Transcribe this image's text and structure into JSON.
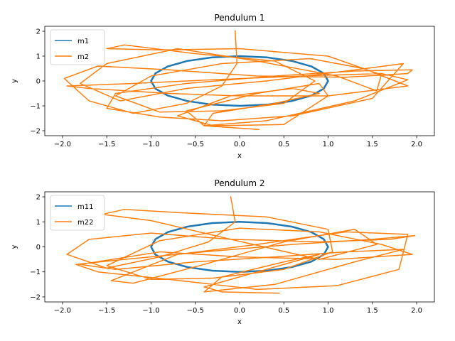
{
  "chart_data": [
    {
      "type": "line",
      "title": "Pendulum 1",
      "xlabel": "x",
      "ylabel": "y",
      "xlim": [
        -2.2,
        2.2
      ],
      "ylim": [
        -2.2,
        2.2
      ],
      "xticks": [
        -2.0,
        -1.5,
        -1.0,
        -0.5,
        0.0,
        0.5,
        1.0,
        1.5,
        2.0
      ],
      "yticks": [
        -2,
        -1,
        0,
        1,
        2
      ],
      "xtick_labels": [
        "−2.0",
        "−1.5",
        "−1.0",
        "−0.5",
        "0.0",
        "0.5",
        "1.0",
        "1.5",
        "2.0"
      ],
      "ytick_labels": [
        "−2",
        "−1",
        "0",
        "1",
        "2"
      ],
      "grid": false,
      "legend_position": "top-left",
      "series": [
        {
          "name": "m1",
          "color": "#1f77b4",
          "shape": "closed ellipse trace (length-1 rod, y scaled)",
          "x": [
            1.0,
            0.951,
            0.809,
            0.588,
            0.309,
            0.0,
            -0.309,
            -0.588,
            -0.809,
            -0.951,
            -1.0,
            -0.951,
            -0.809,
            -0.588,
            -0.309,
            0.0,
            0.309,
            0.588,
            0.809,
            0.951,
            1.0
          ],
          "y": [
            0.0,
            0.31,
            0.59,
            0.81,
            0.95,
            1.0,
            0.95,
            0.81,
            0.59,
            0.31,
            0.0,
            -0.31,
            -0.59,
            -0.81,
            -0.95,
            -1.0,
            -0.95,
            -0.81,
            -0.59,
            -0.31,
            0.0
          ]
        },
        {
          "name": "m2",
          "color": "#ff7f0e",
          "x": [
            -0.05,
            -0.03,
            -0.2,
            -0.6,
            -1.2,
            -1.7,
            -1.98,
            -1.6,
            -0.8,
            0.2,
            1.2,
            1.9,
            1.95,
            1.3,
            0.4,
            -0.6,
            -1.4,
            -1.5,
            -0.9,
            -0.2,
            0.6,
            1.5,
            1.85,
            1.2,
            0.3,
            -0.6,
            -1.35,
            -1.8,
            -1.5,
            -0.7,
            0.2,
            1.1,
            1.55,
            1.6,
            1.0,
            0.0,
            -0.9,
            -1.5,
            -1.3,
            -0.5,
            0.4,
            0.85,
            0.5,
            -0.2,
            -0.9,
            -1.4,
            -1.0,
            -0.2,
            0.8,
            1.4,
            1.9,
            1.0,
            0.0,
            -0.8,
            -1.7,
            -1.95,
            -1.2,
            -0.3,
            0.7,
            1.6,
            1.9,
            1.3,
            0.3,
            -0.4,
            -0.6,
            0.2,
            0.9,
            1.0,
            0.5,
            -0.3,
            -0.7,
            -0.1,
            0.6,
            0.9,
            0.4,
            -0.3,
            -0.4,
            0.22
          ],
          "y": [
            2.02,
            0.7,
            -0.2,
            -0.9,
            -1.3,
            -0.8,
            0.1,
            0.6,
            0.45,
            0.2,
            0.15,
            0.3,
            0.45,
            0.4,
            0.2,
            -0.1,
            -0.5,
            -1.1,
            -1.45,
            -1.6,
            -1.4,
            -0.7,
            0.7,
            0.4,
            0.0,
            -0.3,
            -0.8,
            -0.1,
            0.7,
            1.3,
            0.8,
            0.2,
            -0.4,
            0.25,
            1.0,
            1.3,
            1.25,
            1.3,
            1.45,
            1.1,
            0.8,
            0.0,
            -0.9,
            -1.2,
            -1.25,
            -0.6,
            0.2,
            0.7,
            0.9,
            0.5,
            -0.2,
            -0.6,
            -0.6,
            -0.5,
            -0.3,
            -0.2,
            -0.1,
            0.05,
            0.2,
            0.3,
            0.05,
            -0.8,
            -1.6,
            -1.8,
            -1.2,
            -0.5,
            -0.1,
            -0.6,
            -1.75,
            -1.8,
            -1.4,
            -0.6,
            -0.3,
            -0.5,
            -0.9,
            -1.3,
            -1.8,
            -1.95
          ]
        }
      ]
    },
    {
      "type": "line",
      "title": "Pendulum 2",
      "xlabel": "x",
      "ylabel": "y",
      "xlim": [
        -2.2,
        2.2
      ],
      "ylim": [
        -2.2,
        2.2
      ],
      "xticks": [
        -2.0,
        -1.5,
        -1.0,
        -0.5,
        0.0,
        0.5,
        1.0,
        1.5,
        2.0
      ],
      "yticks": [
        -2,
        -1,
        0,
        1,
        2
      ],
      "xtick_labels": [
        "−2.0",
        "−1.5",
        "−1.0",
        "−0.5",
        "0.0",
        "0.5",
        "1.0",
        "1.5",
        "2.0"
      ],
      "ytick_labels": [
        "−2",
        "−1",
        "0",
        "1",
        "2"
      ],
      "grid": false,
      "legend_position": "top-left",
      "series": [
        {
          "name": "m11",
          "color": "#1f77b4",
          "shape": "closed ellipse trace (length-1 rod, y scaled)",
          "x": [
            1.0,
            0.951,
            0.809,
            0.588,
            0.309,
            0.0,
            -0.309,
            -0.588,
            -0.809,
            -0.951,
            -1.0,
            -0.951,
            -0.809,
            -0.588,
            -0.309,
            0.0,
            0.309,
            0.588,
            0.809,
            0.951,
            1.0
          ],
          "y": [
            0.0,
            0.31,
            0.59,
            0.81,
            0.95,
            1.0,
            0.95,
            0.81,
            0.59,
            0.31,
            0.0,
            -0.31,
            -0.59,
            -0.81,
            -0.95,
            -1.0,
            -0.95,
            -0.81,
            -0.59,
            -0.31,
            0.0
          ]
        },
        {
          "name": "m22",
          "color": "#ff7f0e",
          "x": [
            -0.1,
            -0.05,
            -0.35,
            -0.9,
            -1.5,
            -1.95,
            -1.7,
            -1.0,
            -0.1,
            0.9,
            1.7,
            1.98,
            1.5,
            0.6,
            -0.4,
            -1.3,
            -1.85,
            -1.6,
            -0.8,
            0.2,
            1.1,
            1.8,
            1.9,
            1.2,
            0.2,
            -0.7,
            -1.45,
            -1.2,
            -0.4,
            0.5,
            1.3,
            1.55,
            0.9,
            -0.1,
            -1.0,
            -1.55,
            -1.3,
            -0.6,
            0.3,
            1.0,
            1.05,
            0.5,
            -0.3,
            -1.0,
            -1.5,
            -0.9,
            0.0,
            0.9,
            1.6,
            1.95,
            1.1,
            0.0,
            -0.9,
            -1.8,
            -1.4,
            -0.5,
            0.4,
            1.2,
            1.85,
            1.3,
            0.4,
            -0.4,
            -0.2,
            0.5,
            0.9,
            0.3,
            -0.4,
            -0.2,
            0.45
          ],
          "y": [
            2.0,
            1.0,
            0.2,
            -0.4,
            -0.85,
            -0.3,
            0.3,
            0.55,
            0.3,
            0.2,
            0.3,
            0.45,
            0.3,
            0.1,
            -0.2,
            -0.5,
            -0.7,
            -1.0,
            -1.3,
            -1.7,
            -1.55,
            -0.9,
            0.5,
            0.6,
            0.1,
            -0.3,
            -1.35,
            -1.45,
            -0.7,
            0.2,
            0.7,
            0.1,
            -0.5,
            0.3,
            1.05,
            1.3,
            1.5,
            1.35,
            1.2,
            0.7,
            -0.2,
            -0.9,
            -1.25,
            -1.3,
            -0.75,
            0.25,
            0.75,
            0.6,
            0.1,
            -0.3,
            -0.5,
            -0.4,
            -0.2,
            -0.7,
            -0.9,
            -0.6,
            -0.4,
            -0.2,
            -0.1,
            -0.6,
            -1.5,
            -1.8,
            -1.2,
            -0.6,
            -0.3,
            -0.9,
            -1.6,
            -1.8,
            -1.85
          ]
        }
      ]
    }
  ]
}
